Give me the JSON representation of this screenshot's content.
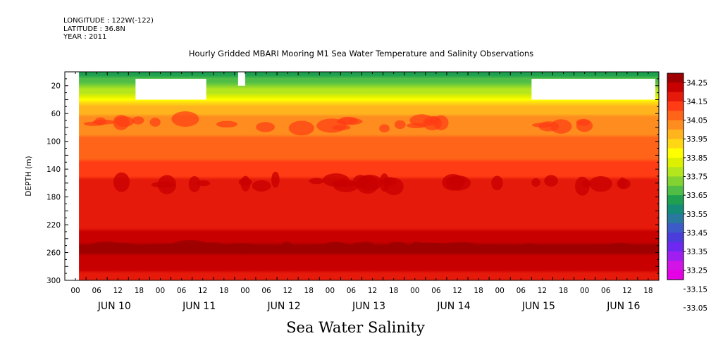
{
  "header": {
    "longitude": "LONGITUDE : 122W(-122)",
    "latitude": "LATITUDE : 36.8N",
    "year": "YEAR : 2011"
  },
  "chart_data": {
    "type": "heatmap",
    "title": "Hourly Gridded MBARI Mooring M1 Sea Water Temperature and Salinity Observations",
    "xlabel": "Sea Water Salinity",
    "ylabel": "DEPTH (m)",
    "ylim": [
      300,
      0
    ],
    "y_ticks": [
      20,
      60,
      100,
      140,
      180,
      220,
      260,
      300
    ],
    "x_hour_ticks": [
      "00",
      "06",
      "12",
      "18",
      "00",
      "06",
      "12",
      "18",
      "00",
      "06",
      "12",
      "18",
      "00",
      "06",
      "12",
      "18",
      "00",
      "06",
      "12",
      "18",
      "00",
      "06",
      "12",
      "18",
      "00",
      "06",
      "12",
      "18"
    ],
    "x_day_labels": [
      "JUN 10",
      "JUN 11",
      "JUN 12",
      "JUN 13",
      "JUN 14",
      "JUN 15",
      "JUN 16"
    ],
    "colorbar": {
      "labels": [
        "34.25",
        "34.15",
        "34.05",
        "33.95",
        "33.85",
        "33.75",
        "33.65",
        "33.55",
        "33.45",
        "33.35",
        "33.25",
        "33.15",
        "33.05"
      ],
      "colors": [
        "#9e0000",
        "#c80000",
        "#e61a0a",
        "#ff3c14",
        "#ff6418",
        "#ff8c1e",
        "#ffb41e",
        "#ffd714",
        "#ffff00",
        "#dcf000",
        "#b4e61e",
        "#82d232",
        "#50be46",
        "#1ea050",
        "#148c78",
        "#2878a0",
        "#3c5ac8",
        "#4b3cdc",
        "#6e28f0",
        "#a01ef0",
        "#d214e6",
        "#e600e6"
      ]
    },
    "profile": [
      {
        "depth": 6,
        "salinity": 33.52
      },
      {
        "depth": 20,
        "salinity": 33.62
      },
      {
        "depth": 35,
        "salinity": 33.74
      },
      {
        "depth": 45,
        "salinity": 33.85
      },
      {
        "depth": 55,
        "salinity": 33.92
      },
      {
        "depth": 75,
        "salinity": 33.98
      },
      {
        "depth": 100,
        "salinity": 34.0
      },
      {
        "depth": 120,
        "salinity": 34.03
      },
      {
        "depth": 140,
        "salinity": 34.09
      },
      {
        "depth": 160,
        "salinity": 34.12
      },
      {
        "depth": 180,
        "salinity": 34.12
      },
      {
        "depth": 200,
        "salinity": 34.12
      },
      {
        "depth": 220,
        "salinity": 34.14
      },
      {
        "depth": 240,
        "salinity": 34.2
      },
      {
        "depth": 255,
        "salinity": 34.24
      },
      {
        "depth": 270,
        "salinity": 34.21
      },
      {
        "depth": 285,
        "salinity": 34.17
      },
      {
        "depth": 300,
        "salinity": 34.13
      }
    ],
    "missing_periods": [
      {
        "start_day": 0,
        "start_hour": 0,
        "end_day": 0,
        "end_hour": 4,
        "depth_from": 0,
        "depth_to": 300
      },
      {
        "start_day": 0,
        "start_hour": 20,
        "end_day": 1,
        "end_hour": 16,
        "depth_from": 10,
        "depth_to": 40
      },
      {
        "start_day": 2,
        "start_hour": 1,
        "end_day": 2,
        "end_hour": 3,
        "depth_from": 0,
        "depth_to": 20
      },
      {
        "start_day": 5,
        "start_hour": 12,
        "end_day": 6,
        "end_hour": 23,
        "depth_from": 10,
        "depth_to": 40
      }
    ]
  }
}
